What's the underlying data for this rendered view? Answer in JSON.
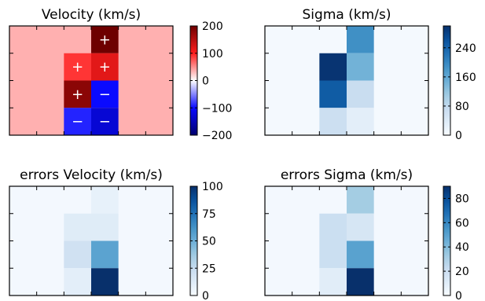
{
  "chart_data": [
    {
      "type": "heatmap",
      "title": "Velocity (km/s)",
      "colormap": "diverging-blue-white-red",
      "clim": [
        -200,
        200
      ],
      "colorbar_ticks": [
        200,
        100,
        0,
        -100,
        -200
      ],
      "grid_cols": 6,
      "grid_rows": 4,
      "background_value": 35,
      "cells": [
        {
          "col": 3,
          "row": 0,
          "value": 200,
          "marker": "+"
        },
        {
          "col": 2,
          "row": 1,
          "value": 90,
          "marker": "+"
        },
        {
          "col": 3,
          "row": 1,
          "value": 120,
          "marker": "+"
        },
        {
          "col": 2,
          "row": 2,
          "value": 180,
          "marker": "+"
        },
        {
          "col": 3,
          "row": 2,
          "value": -100,
          "marker": "−"
        },
        {
          "col": 2,
          "row": 3,
          "value": -90,
          "marker": "−"
        },
        {
          "col": 3,
          "row": 3,
          "value": -130,
          "marker": "−"
        }
      ]
    },
    {
      "type": "heatmap",
      "title": "Sigma (km/s)",
      "colormap": "blues",
      "clim": [
        0,
        300
      ],
      "colorbar_ticks": [
        240,
        160,
        80,
        0
      ],
      "grid_cols": 6,
      "grid_rows": 4,
      "background_value": 5,
      "cells": [
        {
          "col": 3,
          "row": 0,
          "value": 190
        },
        {
          "col": 2,
          "row": 1,
          "value": 295
        },
        {
          "col": 3,
          "row": 1,
          "value": 145
        },
        {
          "col": 2,
          "row": 2,
          "value": 250
        },
        {
          "col": 3,
          "row": 2,
          "value": 70
        },
        {
          "col": 2,
          "row": 3,
          "value": 65
        },
        {
          "col": 3,
          "row": 3,
          "value": 30
        }
      ]
    },
    {
      "type": "heatmap",
      "title": "errors Velocity (km/s)",
      "colormap": "blues",
      "clim": [
        0,
        100
      ],
      "colorbar_ticks": [
        100,
        75,
        50,
        25,
        0
      ],
      "grid_cols": 6,
      "grid_rows": 4,
      "background_value": 2,
      "cells": [
        {
          "col": 3,
          "row": 0,
          "value": 8
        },
        {
          "col": 2,
          "row": 1,
          "value": 12
        },
        {
          "col": 3,
          "row": 1,
          "value": 12
        },
        {
          "col": 2,
          "row": 2,
          "value": 20
        },
        {
          "col": 3,
          "row": 2,
          "value": 55
        },
        {
          "col": 2,
          "row": 3,
          "value": 10
        },
        {
          "col": 3,
          "row": 3,
          "value": 100
        }
      ]
    },
    {
      "type": "heatmap",
      "title": "errors Sigma (km/s)",
      "colormap": "blues",
      "clim": [
        0,
        90
      ],
      "colorbar_ticks": [
        80,
        60,
        40,
        20,
        0
      ],
      "grid_cols": 6,
      "grid_rows": 4,
      "background_value": 2,
      "cells": [
        {
          "col": 3,
          "row": 0,
          "value": 32
        },
        {
          "col": 2,
          "row": 1,
          "value": 20
        },
        {
          "col": 3,
          "row": 1,
          "value": 15
        },
        {
          "col": 2,
          "row": 2,
          "value": 20
        },
        {
          "col": 3,
          "row": 2,
          "value": 50
        },
        {
          "col": 2,
          "row": 3,
          "value": 10
        },
        {
          "col": 3,
          "row": 3,
          "value": 90
        }
      ]
    }
  ]
}
